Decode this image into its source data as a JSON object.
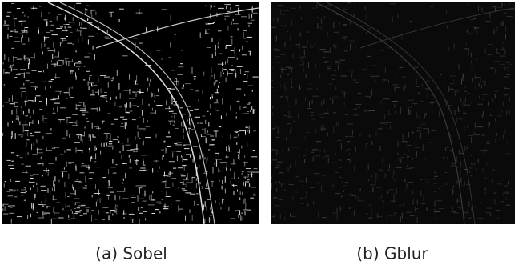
{
  "figures": [
    {
      "caption": "(a) Sobel"
    },
    {
      "caption": "(b) Gblur"
    }
  ]
}
